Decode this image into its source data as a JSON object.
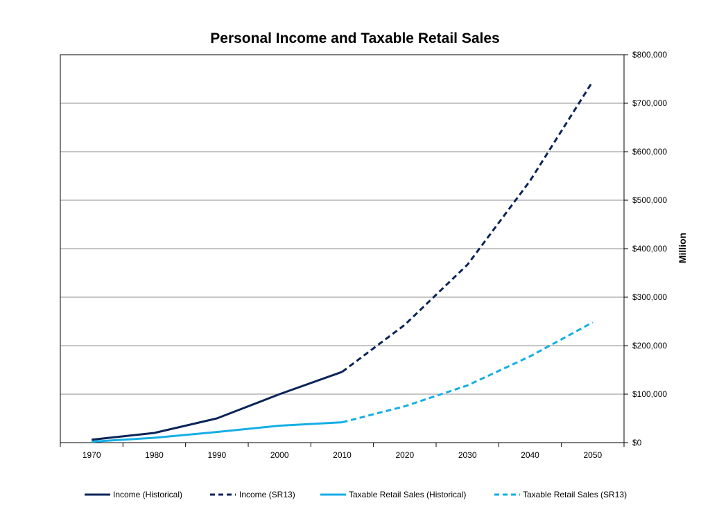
{
  "chart_data": {
    "type": "line",
    "title": "Personal Income and Taxable Retail Sales",
    "xlabel": "",
    "ylabel": "Million",
    "categories": [
      "1970",
      "1980",
      "1990",
      "2000",
      "2010",
      "2020",
      "2030",
      "2040",
      "2050"
    ],
    "ylim": [
      0,
      800000
    ],
    "yticks": [
      0,
      100000,
      200000,
      300000,
      400000,
      500000,
      600000,
      700000,
      800000
    ],
    "ytick_labels": [
      "$0",
      "$100,000",
      "$200,000",
      "$300,000",
      "$400,000",
      "$500,000",
      "$600,000",
      "$700,000",
      "$800,000"
    ],
    "y_axis_side": "right",
    "grid": true,
    "legend_position": "bottom",
    "series": [
      {
        "name": "Income (Historical)",
        "color": "#0a2458",
        "style": "solid",
        "x": [
          "1970",
          "1980",
          "1990",
          "2000",
          "2010"
        ],
        "values": [
          6000,
          20000,
          50000,
          100000,
          146000
        ]
      },
      {
        "name": "Income (SR13)",
        "color": "#0a2458",
        "style": "dashed",
        "x": [
          "2010",
          "2020",
          "2030",
          "2040",
          "2050"
        ],
        "values": [
          146000,
          243000,
          367000,
          540000,
          745000
        ]
      },
      {
        "name": "Taxable Retail Sales (Historical)",
        "color": "#14aee6",
        "style": "solid",
        "x": [
          "1970",
          "1980",
          "1990",
          "2000",
          "2010"
        ],
        "values": [
          2000,
          10000,
          22000,
          35000,
          42000
        ]
      },
      {
        "name": "Taxable Retail Sales (SR13)",
        "color": "#14aee6",
        "style": "dashed",
        "x": [
          "2010",
          "2020",
          "2030",
          "2040",
          "2050"
        ],
        "values": [
          42000,
          75000,
          118000,
          178000,
          248000
        ]
      }
    ]
  }
}
